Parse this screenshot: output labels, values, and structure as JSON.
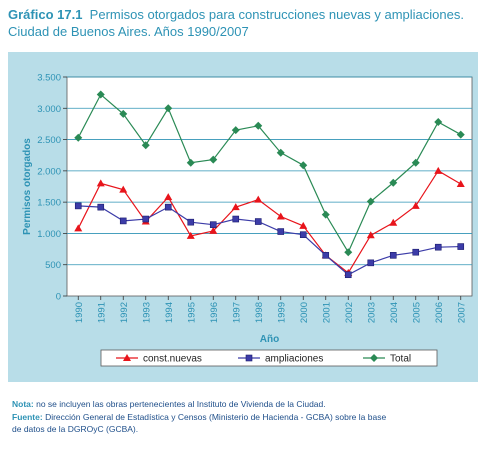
{
  "title": {
    "label": "Gráfico 17.1",
    "text": "Permisos otorgados para construcciones nuevas y ampliaciones.",
    "line2": "Ciudad de Buenos Aires. Años 1990/2007"
  },
  "notes": {
    "nota_label": "Nota:",
    "nota_text": "no se incluyen las obras pertenecientes al Instituto de Vivienda de la Ciudad.",
    "fuente_label": "Fuente:",
    "fuente_text_1": "Dirección General de Estadística y Censos (Ministerio de Hacienda - GCBA) sobre la base",
    "fuente_text_2": "de datos de la DGROyC (GCBA)."
  },
  "colors": {
    "frame_bg": "#b8dde8",
    "plot_bg": "#ffffff",
    "gridline": "#2e93b5",
    "axis_text": "#2e93b5",
    "const_nuevas": "#e8141b",
    "ampliaciones": "#3c3ca8",
    "total": "#2a8a55"
  },
  "chart_data": {
    "type": "line",
    "xlabel": "Año",
    "ylabel": "Permisos otorgados",
    "ylim": [
      0,
      3500
    ],
    "yticks": [
      0,
      500,
      1000,
      1500,
      2000,
      2500,
      3000,
      3500
    ],
    "ytick_labels": [
      "0",
      "500",
      "1.000",
      "1.500",
      "2.000",
      "2.500",
      "3.000",
      "3.500"
    ],
    "grid": true,
    "legend_position": "bottom",
    "categories": [
      "1990",
      "1991",
      "1992",
      "1993",
      "1994",
      "1995",
      "1996",
      "1997",
      "1998",
      "1999",
      "2000",
      "2001",
      "2002",
      "2003",
      "2004",
      "2005",
      "2006",
      "2007"
    ],
    "series": [
      {
        "name": "const.nuevas",
        "marker": "triangle",
        "color": "#e8141b",
        "values": [
          1080,
          1800,
          1700,
          1190,
          1580,
          960,
          1040,
          1420,
          1540,
          1270,
          1120,
          650,
          370,
          970,
          1170,
          1440,
          2000,
          1790
        ]
      },
      {
        "name": "ampliaciones",
        "marker": "square",
        "color": "#3c3ca8",
        "values": [
          1440,
          1420,
          1200,
          1230,
          1420,
          1180,
          1140,
          1230,
          1190,
          1030,
          980,
          650,
          340,
          530,
          650,
          700,
          780,
          790
        ]
      },
      {
        "name": "Total",
        "marker": "diamond",
        "color": "#2a8a55",
        "values": [
          2530,
          3220,
          2910,
          2410,
          3000,
          2130,
          2180,
          2650,
          2720,
          2290,
          2090,
          1300,
          700,
          1510,
          1810,
          2130,
          2780,
          2580
        ]
      }
    ]
  }
}
